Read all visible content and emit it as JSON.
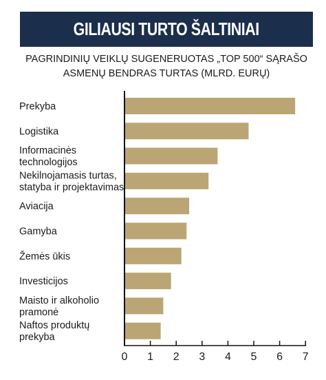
{
  "chart_data": {
    "type": "bar",
    "orientation": "horizontal",
    "title": "GILIAUSI TURTO ŠALTINIAI",
    "subtitle_lines": [
      "PAGRINDINIŲ VEIKLŲ SUGENERUOTAS „TOP 500“ SĄRAŠO",
      "ASMENŲ BENDRAS TURTAS (MLRD. EURŲ)"
    ],
    "categories": [
      [
        "Prekyba"
      ],
      [
        "Logistika"
      ],
      [
        "Informacinės",
        "technologijos"
      ],
      [
        "Nekilnojamasis turtas,",
        "statyba ir projektavimas"
      ],
      [
        "Aviacija"
      ],
      [
        "Gamyba"
      ],
      [
        "Žemės ūkis"
      ],
      [
        "Investicijos"
      ],
      [
        "Maisto ir alkoholio",
        "pramonė"
      ],
      [
        "Naftos produktų",
        "prekyba"
      ]
    ],
    "values": [
      6.6,
      4.8,
      3.6,
      3.25,
      2.5,
      2.4,
      2.2,
      1.8,
      1.5,
      1.4
    ],
    "xlim": [
      0,
      7
    ],
    "xticks": [
      "0",
      "1",
      "2",
      "3",
      "4",
      "5",
      "6",
      "7"
    ],
    "grid": false,
    "bar_color": "#bba574"
  }
}
